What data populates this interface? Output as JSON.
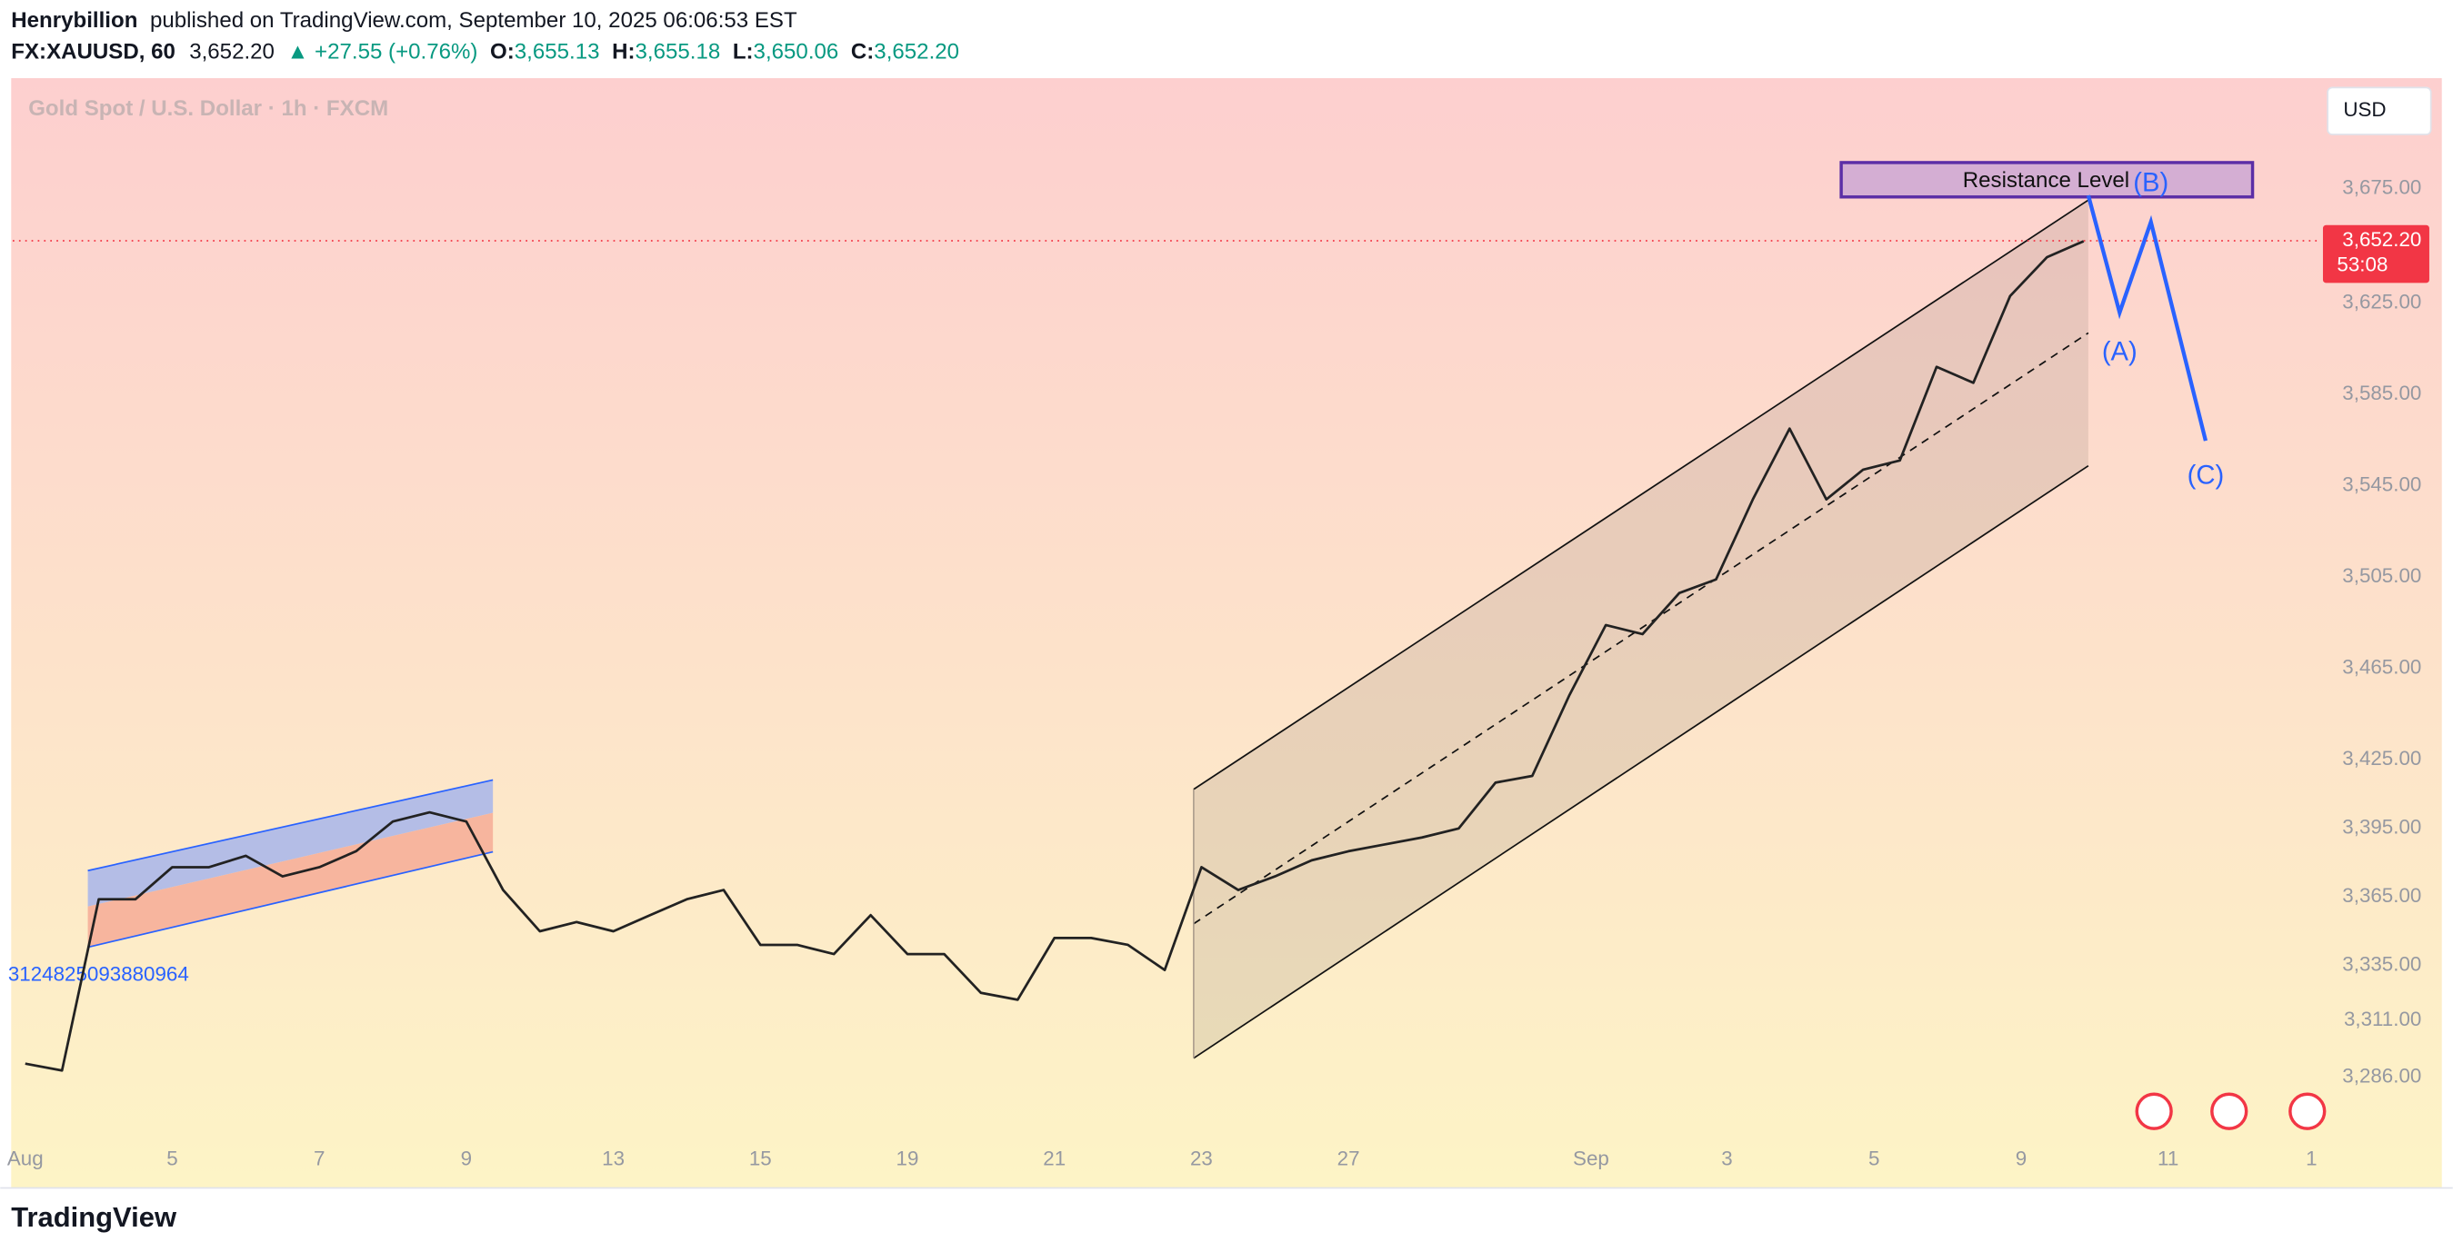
{
  "header": {
    "author": "Henrybillion",
    "published": "published on TradingView.com, September 10, 2025 06:06:53 EST",
    "symbol": "FX:XAUUSD, 60",
    "last": "3,652.20",
    "change": "▲ +27.55 (+0.76%)",
    "o_label": "O:",
    "o": "3,655.13",
    "h_label": "H:",
    "h": "3,655.18",
    "l_label": "L:",
    "l": "3,650.06",
    "c_label": "C:",
    "c": "3,652.20"
  },
  "footer": {
    "brand": "TradingView"
  },
  "chart_data": {
    "type": "line",
    "title": "Gold Spot / U.S. Dollar · 1h · FXCM",
    "currency": "USD",
    "color": "#222222",
    "values": [
      3292,
      3289,
      3364,
      3364,
      3378,
      3378,
      3383,
      3374,
      3378,
      3385,
      3398,
      3402,
      3398,
      3368,
      3350,
      3354,
      3350,
      3357,
      3364,
      3368,
      3344,
      3344,
      3340,
      3357,
      3340,
      3340,
      3323,
      3320,
      3347,
      3347,
      3344,
      3333,
      3378,
      3368,
      3374,
      3381,
      3385,
      3388,
      3391,
      3395,
      3415,
      3418,
      3453,
      3484,
      3480,
      3498,
      3504,
      3539,
      3570,
      3539,
      3552,
      3556,
      3597,
      3590,
      3628,
      3645,
      3652
    ],
    "xlim": [
      -0.34,
      62.3
    ],
    "xticks": [
      {
        "value": 0,
        "label": "Aug"
      },
      {
        "value": 4,
        "label": "5"
      },
      {
        "value": 8,
        "label": "7"
      },
      {
        "value": 12,
        "label": "9"
      },
      {
        "value": 16,
        "label": "13"
      },
      {
        "value": 20,
        "label": "15"
      },
      {
        "value": 24,
        "label": "19"
      },
      {
        "value": 28,
        "label": "21"
      },
      {
        "value": 32,
        "label": "23"
      },
      {
        "value": 36,
        "label": "27"
      },
      {
        "value": 42.6,
        "label": "Sep"
      },
      {
        "value": 46.3,
        "label": "3"
      },
      {
        "value": 50.3,
        "label": "5"
      },
      {
        "value": 54.3,
        "label": "9"
      },
      {
        "value": 58.3,
        "label": "11"
      },
      {
        "value": 62.2,
        "label": "1"
      }
    ],
    "ylim": [
      3239,
      3722
    ],
    "yticks": [
      {
        "value": 3675,
        "label": "3,675.00"
      },
      {
        "value": 3625,
        "label": "3,625.00"
      },
      {
        "value": 3585,
        "label": "3,585.00"
      },
      {
        "value": 3545,
        "label": "3,545.00"
      },
      {
        "value": 3505,
        "label": "3,505.00"
      },
      {
        "value": 3465,
        "label": "3,465.00"
      },
      {
        "value": 3425,
        "label": "3,425.00"
      },
      {
        "value": 3395,
        "label": "3,395.00"
      },
      {
        "value": 3365,
        "label": "3,365.00"
      },
      {
        "value": 3335,
        "label": "3,335.00"
      },
      {
        "value": 3311,
        "label": "3,311.00"
      },
      {
        "value": 3286,
        "label": "3,286.00"
      }
    ],
    "price_line": {
      "value": 3652.2,
      "label": "3,652.20",
      "countdown": "53:08"
    },
    "annotations": {
      "resistance": "Resistance Level",
      "a": "(A)",
      "b": "(B)",
      "c": "(C)",
      "id": "3124825093880964"
    }
  }
}
